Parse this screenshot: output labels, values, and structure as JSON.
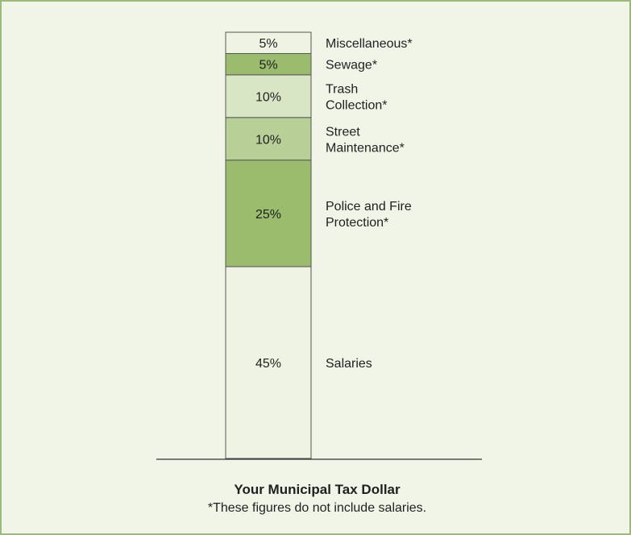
{
  "chart_data": {
    "type": "bar",
    "stacked": true,
    "unit": "%",
    "ylim": [
      0,
      100
    ],
    "grid": false,
    "segments": [
      {
        "label": "Salaries",
        "value": 45,
        "value_label": "45%",
        "color": "#eef3e4"
      },
      {
        "label": "Police and Fire Protection*",
        "value": 25,
        "value_label": "25%",
        "color": "#9bbc6d"
      },
      {
        "label": "Street Maintenance*",
        "value": 10,
        "value_label": "10%",
        "color": "#b8cf98"
      },
      {
        "label": "Trash Collection*",
        "value": 10,
        "value_label": "10%",
        "color": "#d9e6c5"
      },
      {
        "label": "Sewage*",
        "value": 5,
        "value_label": "5%",
        "color": "#9bbc6d"
      },
      {
        "label": "Miscellaneous*",
        "value": 5,
        "value_label": "5%",
        "color": "#eef3e4"
      }
    ],
    "title": "Your Municipal Tax Dollar",
    "footnote": "*These figures do not include salaries."
  }
}
